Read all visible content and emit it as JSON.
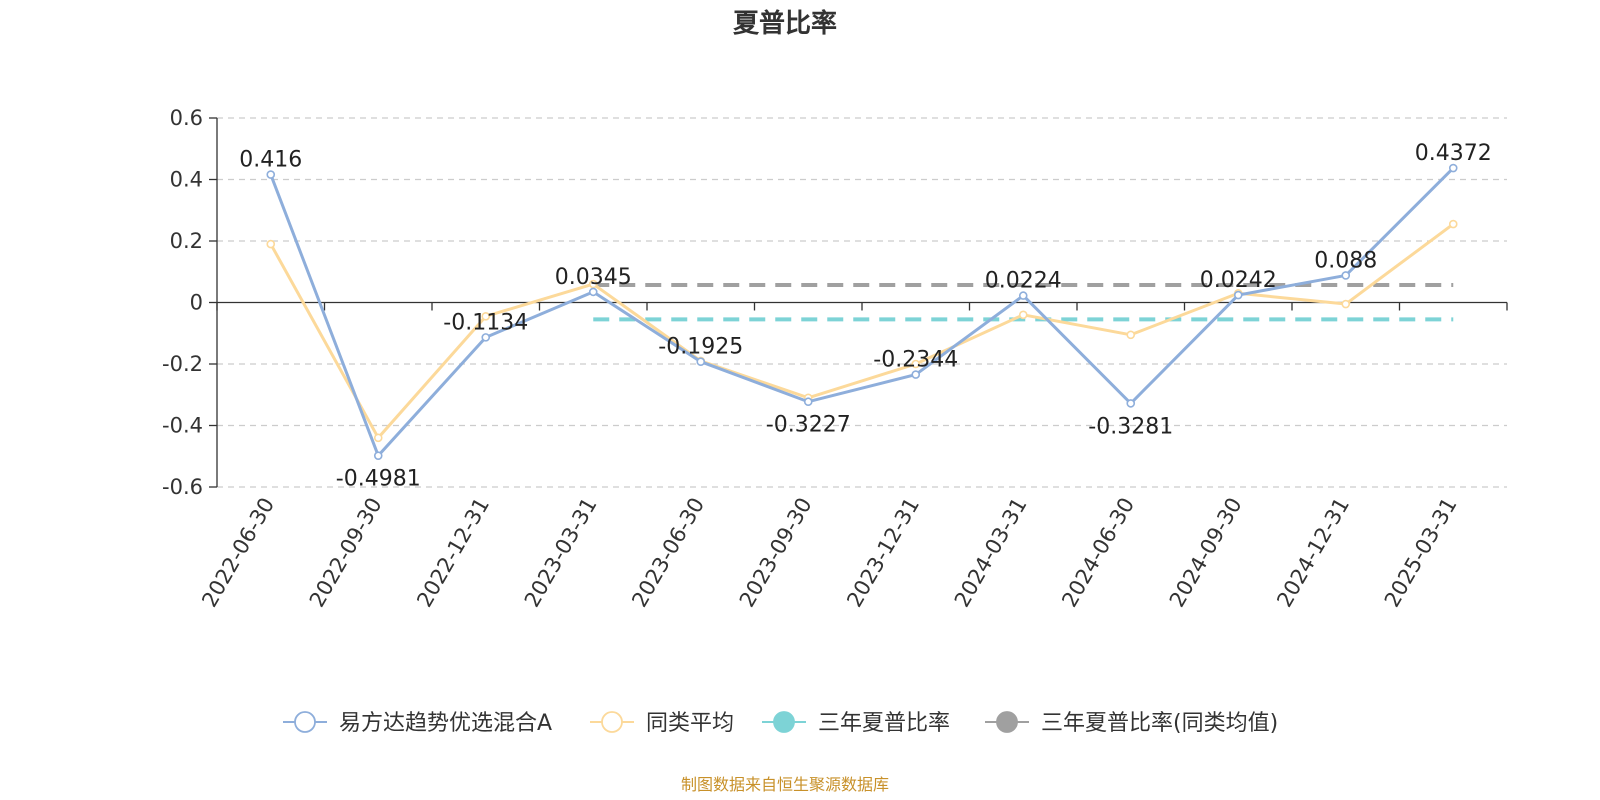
{
  "chart_data": {
    "type": "line",
    "title": "夏普比率",
    "categories": [
      "2022-06-30",
      "2022-09-30",
      "2022-12-31",
      "2023-03-31",
      "2023-06-30",
      "2023-09-30",
      "2023-12-31",
      "2024-03-31",
      "2024-06-30",
      "2024-09-30",
      "2024-12-31",
      "2025-03-31"
    ],
    "ylim": [
      -0.6,
      0.6
    ],
    "yticks": [
      "0.6",
      "0.4",
      "0.2",
      "0",
      "-0.2",
      "-0.4",
      "-0.6"
    ],
    "grid": true,
    "legend_position": "bottom",
    "series": [
      {
        "name": "易方达趋势优选混合A",
        "color": "#8eaedb",
        "values": [
          0.416,
          -0.4981,
          -0.1134,
          0.0345,
          -0.1925,
          -0.3227,
          -0.2344,
          0.0224,
          -0.3281,
          0.0242,
          0.088,
          0.4372
        ],
        "labels": [
          "0.416",
          "-0.4981",
          "-0.1134",
          "0.0345",
          "-0.1925",
          "-0.3227",
          "-0.2344",
          "0.0224",
          "-0.3281",
          "0.0242",
          "0.088",
          "0.4372"
        ]
      },
      {
        "name": "同类平均",
        "color": "#fcd99a",
        "values": [
          0.19,
          -0.44,
          -0.045,
          0.06,
          -0.19,
          -0.31,
          -0.2,
          -0.04,
          -0.105,
          0.03,
          -0.005,
          0.255
        ]
      },
      {
        "name": "三年夏普比率",
        "color": "#7dd3d6",
        "type": "reference",
        "value": -0.055,
        "x_range": [
          3,
          11
        ]
      },
      {
        "name": "三年夏普比率(同类均值)",
        "color": "#a0a0a0",
        "type": "reference",
        "value": 0.057,
        "x_range": [
          3,
          11
        ]
      }
    ]
  },
  "footer": {
    "source": "制图数据来自恒生聚源数据库"
  }
}
